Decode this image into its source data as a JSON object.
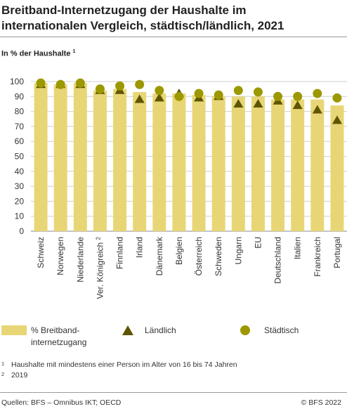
{
  "title": "Breitband-Internetzugang der Haushalte im internationalen Vergleich, städtisch/ländlich, 2021",
  "subtitle": "In % der Haushalte",
  "subtitle_ref": "1",
  "colors": {
    "bar": "#e8d676",
    "marker": "#5f5500",
    "circle": "#9c9800",
    "grid": "#cfcfcf"
  },
  "chart_data": {
    "type": "bar",
    "categories": [
      "Schweiz",
      "Norwegen",
      "Niederlande",
      "Ver. Königreich 2",
      "Finnland",
      "Irland",
      "Dänemark",
      "Belgien",
      "Österreich",
      "Schweden",
      "Ungarn",
      "EU",
      "Deutschland",
      "Italien",
      "Frankreich",
      "Portugal"
    ],
    "series": [
      {
        "name": "% Breitband-internetzugang",
        "type": "bar",
        "values": [
          99,
          98,
          99,
          94,
          95,
          93,
          92,
          92,
          91,
          90,
          90,
          90,
          88,
          88,
          88,
          84
        ]
      },
      {
        "name": "Ländlich",
        "type": "triangle",
        "values": [
          98,
          98,
          98,
          94,
          94,
          88,
          89,
          92,
          89,
          90,
          85,
          85,
          87,
          84,
          81,
          74
        ]
      },
      {
        "name": "Städtisch",
        "type": "circle",
        "values": [
          99,
          98,
          99,
          95,
          97,
          98,
          94,
          90,
          92,
          91,
          94,
          93,
          90,
          90,
          92,
          89
        ]
      }
    ],
    "yticks": [
      0,
      10,
      20,
      30,
      40,
      50,
      60,
      70,
      80,
      90,
      100
    ],
    "ylim": [
      0,
      100
    ],
    "grid": true,
    "legend": "bottom"
  },
  "legend": {
    "bar_label_line1": "% Breitband-",
    "bar_label_line2": "internetzugang",
    "rural_label": "Ländlich",
    "urban_label": "Städtisch"
  },
  "footnotes": [
    {
      "num": "1",
      "text": "Haushalte mit mindestens einer Person im Alter von 16 bis 74 Jahren"
    },
    {
      "num": "2",
      "text": "2019"
    }
  ],
  "footer": {
    "source": "Quellen: BFS – Omnibus IKT; OECD",
    "copyright": "© BFS 2022"
  }
}
